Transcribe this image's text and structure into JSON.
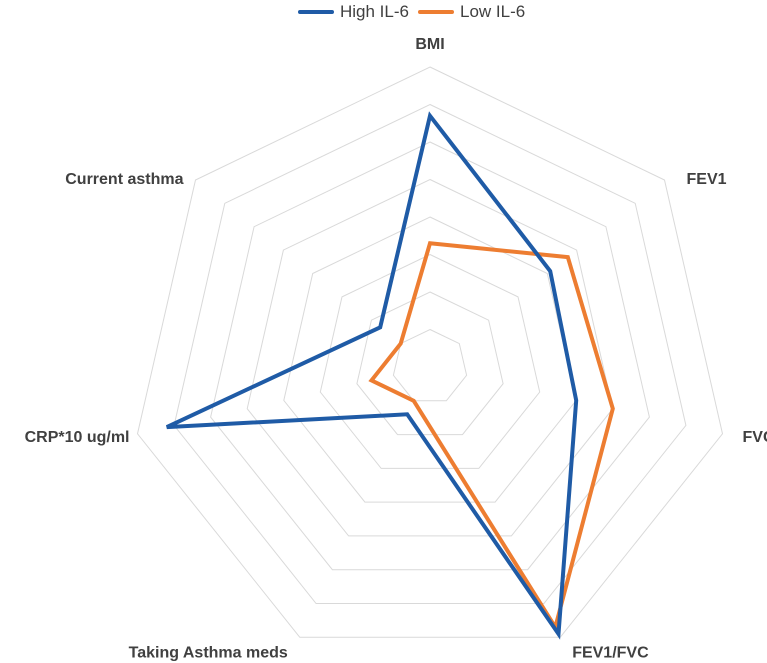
{
  "chart_data": {
    "type": "radar",
    "axes": [
      "BMI",
      "FEV1",
      "FVC",
      "FEV1/FVC",
      "Taking Asthma meds",
      "CRP*10 ug/ml",
      "Current asthma"
    ],
    "rmax": 8,
    "rings": 8,
    "grid": true,
    "legend_position": "top-center",
    "series": [
      {
        "name": "High IL-6",
        "color": "#1f5ba6",
        "values": [
          6.7,
          4.1,
          4.0,
          7.9,
          1.4,
          7.2,
          1.7
        ]
      },
      {
        "name": "Low IL-6",
        "color": "#ed7d31",
        "values": [
          3.3,
          4.7,
          5.0,
          7.7,
          1.0,
          1.6,
          1.0
        ]
      }
    ]
  },
  "legend": {
    "high_label": "High IL-6",
    "low_label": "Low IL-6"
  }
}
